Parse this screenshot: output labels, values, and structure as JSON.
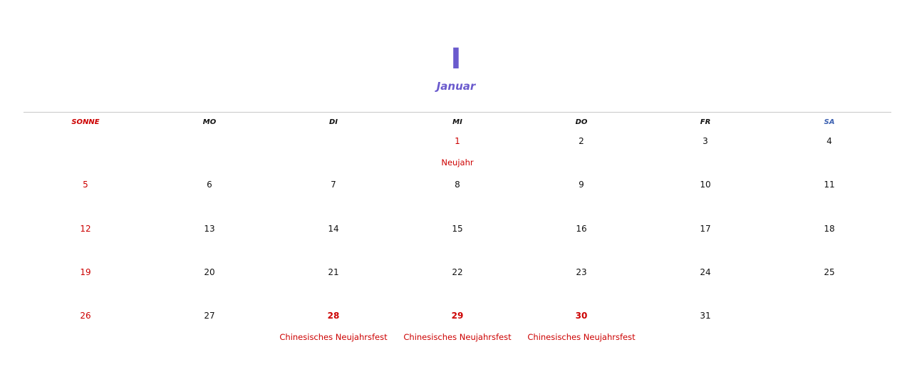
{
  "month": {
    "number": "I",
    "name": "Januar"
  },
  "weekdays": [
    "SONNE",
    "MO",
    "DI",
    "MI",
    "DO",
    "FR",
    "SA"
  ],
  "colors": {
    "accent": "#6a5acd",
    "holiday_red": "#cc0000",
    "saturday_blue": "#3a5fb0",
    "divider": "#c8c8c8"
  },
  "weeks": [
    [
      {
        "day": "",
        "holiday": ""
      },
      {
        "day": "",
        "holiday": ""
      },
      {
        "day": "",
        "holiday": ""
      },
      {
        "day": "1",
        "holiday": "Neujahr"
      },
      {
        "day": "2",
        "holiday": ""
      },
      {
        "day": "3",
        "holiday": ""
      },
      {
        "day": "4",
        "holiday": ""
      }
    ],
    [
      {
        "day": "5",
        "holiday": ""
      },
      {
        "day": "6",
        "holiday": ""
      },
      {
        "day": "7",
        "holiday": ""
      },
      {
        "day": "8",
        "holiday": ""
      },
      {
        "day": "9",
        "holiday": ""
      },
      {
        "day": "10",
        "holiday": ""
      },
      {
        "day": "11",
        "holiday": ""
      }
    ],
    [
      {
        "day": "12",
        "holiday": ""
      },
      {
        "day": "13",
        "holiday": ""
      },
      {
        "day": "14",
        "holiday": ""
      },
      {
        "day": "15",
        "holiday": ""
      },
      {
        "day": "16",
        "holiday": ""
      },
      {
        "day": "17",
        "holiday": ""
      },
      {
        "day": "18",
        "holiday": ""
      }
    ],
    [
      {
        "day": "19",
        "holiday": ""
      },
      {
        "day": "20",
        "holiday": ""
      },
      {
        "day": "21",
        "holiday": ""
      },
      {
        "day": "22",
        "holiday": ""
      },
      {
        "day": "23",
        "holiday": ""
      },
      {
        "day": "24",
        "holiday": ""
      },
      {
        "day": "25",
        "holiday": ""
      }
    ],
    [
      {
        "day": "26",
        "holiday": ""
      },
      {
        "day": "27",
        "holiday": ""
      },
      {
        "day": "28",
        "holiday": "Chinesisches Neujahrsfest"
      },
      {
        "day": "29",
        "holiday": "Chinesisches Neujahrsfest"
      },
      {
        "day": "30",
        "holiday": "Chinesisches Neujahrsfest"
      },
      {
        "day": "31",
        "holiday": ""
      },
      {
        "day": "",
        "holiday": ""
      }
    ]
  ]
}
